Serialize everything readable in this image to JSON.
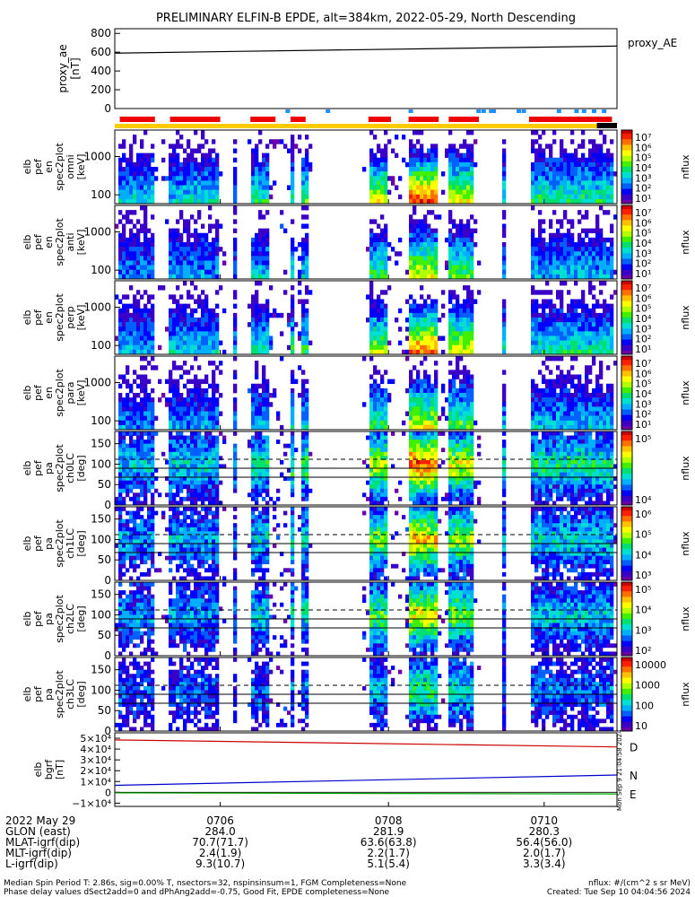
{
  "title": "PRELIMINARY ELFIN-B EPDE, alt=384km, 2022-05-29, North Descending",
  "colors": {
    "red_bar": "#ee0000",
    "yellow_bar": "#ffcc00",
    "blue_marks": "#1e90ff",
    "D": "#cc0000",
    "N": "#0000cc",
    "E": "#00aa00"
  },
  "chart_data": [
    {
      "type": "line",
      "panel": "proxy_ae",
      "ylabel_lines": [
        "proxy_ae",
        "[nT]"
      ],
      "ylim": [
        0,
        850
      ],
      "yticks": [
        "800",
        "600",
        "400",
        "200",
        "0"
      ],
      "ytick_vals": [
        800,
        600,
        400,
        200,
        0
      ],
      "legend": "proxy_AE",
      "series": [
        {
          "x": [
            0,
            1
          ],
          "values": [
            590,
            665
          ]
        }
      ]
    },
    {
      "type": "heatmap",
      "panel": "en-spectra-1",
      "ylabel_lines": [
        "elb",
        "pef",
        "en",
        "spec2plot",
        "omni",
        "[keV]"
      ],
      "yticks": [
        "1000",
        "100"
      ],
      "zlabel": "nflux",
      "cbar_labels": [
        "10⁷",
        "10⁶",
        "10⁵",
        "10⁴",
        "10³",
        "10²",
        "10¹"
      ]
    },
    {
      "type": "heatmap",
      "panel": "en-spectra-2",
      "ylabel_lines": [
        "elb",
        "pef",
        "en",
        "spec2plot",
        "anti",
        "[keV]"
      ],
      "yticks": [
        "1000",
        "100"
      ],
      "zlabel": "nflux",
      "cbar_labels": [
        "10⁷",
        "10⁶",
        "10⁵",
        "10⁴",
        "10³",
        "10²",
        "10¹"
      ]
    },
    {
      "type": "heatmap",
      "panel": "en-spectra-3",
      "ylabel_lines": [
        "elb",
        "pef",
        "en",
        "spec2plot",
        "perp",
        "[keV]"
      ],
      "yticks": [
        "1000",
        "100"
      ],
      "zlabel": "nflux",
      "cbar_labels": [
        "10⁷",
        "10⁶",
        "10⁵",
        "10⁴",
        "10³",
        "10²",
        "10¹"
      ]
    },
    {
      "type": "heatmap",
      "panel": "en-spectra-4",
      "ylabel_lines": [
        "elb",
        "pef",
        "en",
        "spec2plot",
        "para",
        "[keV]"
      ],
      "yticks": [
        "1000",
        "100"
      ],
      "zlabel": "nflux",
      "cbar_labels": [
        "10⁷",
        "10⁶",
        "10⁵",
        "10⁴",
        "10³",
        "10²",
        "10¹"
      ]
    },
    {
      "type": "heatmap",
      "panel": "pa-ch0",
      "ylabel_lines": [
        "elb",
        "pef",
        "pa",
        "spec2plot",
        "ch0LC",
        "[deg]"
      ],
      "yticks": [
        "150",
        "100",
        "50",
        "0"
      ],
      "ylim": [
        0,
        180
      ],
      "zlabel": "nflux",
      "cbar_labels": [
        "10⁵",
        "10⁴"
      ]
    },
    {
      "type": "heatmap",
      "panel": "pa-ch1",
      "ylabel_lines": [
        "elb",
        "pef",
        "pa",
        "spec2plot",
        "ch1LC",
        "[deg]"
      ],
      "yticks": [
        "150",
        "100",
        "50",
        "0"
      ],
      "ylim": [
        0,
        180
      ],
      "zlabel": "nflux",
      "cbar_labels": [
        "10⁶",
        "10⁵",
        "10⁴",
        "10³"
      ]
    },
    {
      "type": "heatmap",
      "panel": "pa-ch2",
      "ylabel_lines": [
        "elb",
        "pef",
        "pa",
        "spec2plot",
        "ch2LC",
        "[deg]"
      ],
      "yticks": [
        "150",
        "100",
        "50",
        "0"
      ],
      "ylim": [
        0,
        180
      ],
      "zlabel": "nflux",
      "cbar_labels": [
        "10⁵",
        "10⁴",
        "10³",
        "10²"
      ]
    },
    {
      "type": "heatmap",
      "panel": "pa-ch3",
      "ylabel_lines": [
        "elb",
        "pef",
        "pa",
        "spec2plot",
        "ch3LC",
        "[deg]"
      ],
      "yticks": [
        "150",
        "100",
        "50",
        "0"
      ],
      "ylim": [
        0,
        180
      ],
      "zlabel": "nflux",
      "cbar_labels": [
        "10000",
        "1000",
        "100",
        "10"
      ]
    },
    {
      "type": "line",
      "panel": "bgrf",
      "ylabel_lines": [
        "elb",
        "bgrf",
        "[nT]"
      ],
      "yticks": [
        "5×10⁴",
        "4×10⁴",
        "3×10⁴",
        "2×10⁴",
        "1×10⁴",
        "0",
        "−1×10⁴"
      ],
      "ytick_vals": [
        50000,
        40000,
        30000,
        20000,
        10000,
        0,
        -10000
      ],
      "ylim": [
        -13000,
        55000
      ],
      "series": [
        {
          "name": "D",
          "x": [
            0,
            1
          ],
          "values": [
            48500,
            42000
          ]
        },
        {
          "name": "N",
          "x": [
            0,
            1
          ],
          "values": [
            6500,
            16000
          ]
        },
        {
          "name": "E",
          "x": [
            0,
            1
          ],
          "values": [
            -500,
            -1500
          ]
        }
      ]
    }
  ],
  "xaxis": {
    "ticks": [
      "0706",
      "0708",
      "0710"
    ],
    "rows": [
      {
        "label": "2022 May 29",
        "values": [
          "0706",
          "0708",
          "0710"
        ]
      },
      {
        "label": "GLON (east)",
        "values": [
          "284.0",
          "281.9",
          "280.3"
        ]
      },
      {
        "label": "MLAT-igrf(dip)",
        "values": [
          "70.7(71.7)",
          "63.6(63.8)",
          "56.4(56.0)"
        ]
      },
      {
        "label": "MLT-igrf(dip)",
        "values": [
          "2.4(1.9)",
          "2.2(1.7)",
          "2.0(1.7)"
        ]
      },
      {
        "label": "L-igrf(dip)",
        "values": [
          "9.3(10.7)",
          "5.1(5.4)",
          "3.3(3.4)"
        ]
      }
    ]
  },
  "footer": {
    "line1_left": "Median Spin Period T: 2.86s, sig=0.00% T, nsectors=32, nspinsinsum=1, FGM Completeness=None",
    "line2_left": "Phase delay values dSect2add=0 and dPhAng2add=-0.75, Good Fit, EPDE completeness=None",
    "line1_right": "nflux: #/(cm^2 s sr MeV)",
    "line2_right": "Created: Tue Sep 10 04:04:56 2024",
    "vertical_stamp": "Mon Sep 9 21:04:58 2024"
  }
}
